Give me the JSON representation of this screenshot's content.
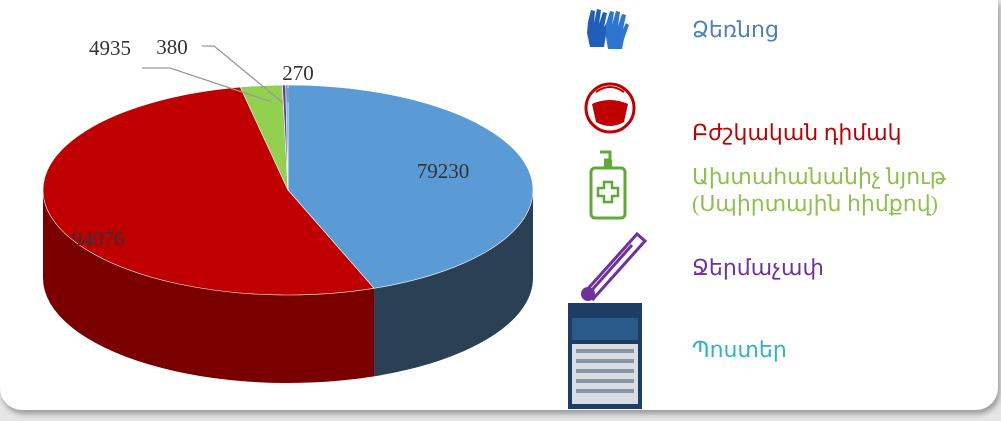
{
  "chart_data": {
    "type": "pie3d",
    "categories": [
      "Ձեռնոց",
      "Բժշկական դիմակ",
      "Ախտահանանիչ նյութ (Սպիրտային հիմքով)",
      "Ջերմաչափ",
      "Պոստեր"
    ],
    "values": [
      79230,
      94076,
      4935,
      380,
      270
    ],
    "colors": [
      "#5b9bd5",
      "#c00000",
      "#92d050",
      "#7030a0",
      "#2bb5c6"
    ],
    "side_colors": [
      "#2b3f55",
      "#7a0000",
      "#5e8a2e",
      "#4a1f6a",
      "#1d7f8b"
    ],
    "legend_colors": [
      "#4a7fc1",
      "#c00000",
      "#8ec04a",
      "#7030a0",
      "#2bb5c6"
    ]
  }
}
